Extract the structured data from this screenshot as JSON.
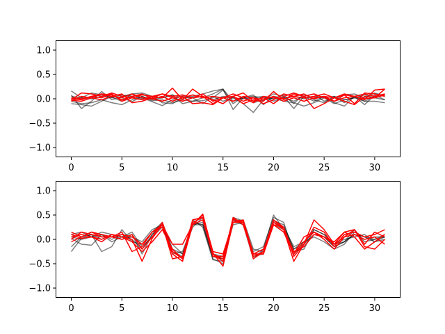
{
  "chart_data": [
    {
      "type": "line",
      "xlim": [
        -1.55,
        32.55
      ],
      "ylim": [
        -1.2,
        1.2
      ],
      "xticks": [
        0,
        5,
        10,
        15,
        20,
        25,
        30
      ],
      "yticks": [
        -1.0,
        -0.5,
        0.0,
        0.5,
        1.0
      ],
      "xtick_labels": [
        "0",
        "5",
        "10",
        "15",
        "20",
        "25",
        "30"
      ],
      "ytick_labels": [
        "−1.0",
        "−0.5",
        "0.0",
        "0.5",
        "1.0"
      ],
      "grid": false,
      "x": [
        0,
        1,
        2,
        3,
        4,
        5,
        6,
        7,
        8,
        9,
        10,
        11,
        12,
        13,
        14,
        15,
        16,
        17,
        18,
        19,
        20,
        21,
        22,
        23,
        24,
        25,
        26,
        27,
        28,
        29,
        30,
        31
      ],
      "series": [
        {
          "color": "#000000",
          "opacity": 0.5,
          "values": [
            0.16,
            0.02,
            0.12,
            0.08,
            0.03,
            -0.05,
            0.1,
            0.12,
            0.05,
            -0.08,
            -0.1,
            0.02,
            0.05,
            0.1,
            0.16,
            0.2,
            -0.22,
            0.02,
            0.08,
            -0.12,
            0.05,
            0.02,
            -0.05,
            0.06,
            0.1,
            -0.05,
            0.02,
            0.08,
            0.1,
            0.02,
            0.12,
            0.06
          ]
        },
        {
          "color": "#000000",
          "opacity": 0.5,
          "values": [
            0.08,
            -0.2,
            -0.05,
            0.15,
            -0.02,
            0.05,
            0.1,
            0.02,
            -0.06,
            -0.14,
            -0.02,
            0.06,
            0.02,
            -0.1,
            0.05,
            -0.05,
            0.02,
            -0.1,
            -0.28,
            -0.02,
            0.1,
            0.05,
            -0.2,
            0.05,
            -0.05,
            0.05,
            -0.08,
            -0.15,
            0.05,
            -0.12,
            0.08,
            -0.02
          ]
        },
        {
          "color": "#000000",
          "opacity": 0.5,
          "values": [
            -0.05,
            -0.1,
            -0.08,
            -0.02,
            -0.08,
            -0.12,
            -0.02,
            0.05,
            -0.04,
            -0.02,
            -0.08,
            -0.02,
            -0.05,
            -0.04,
            0.02,
            0.18,
            -0.1,
            0.05,
            -0.08,
            -0.02,
            0.02,
            -0.05,
            -0.08,
            -0.15,
            -0.08,
            0.02,
            -0.1,
            -0.02,
            0.02,
            -0.05,
            -0.05,
            -0.08
          ]
        },
        {
          "color": "#000000",
          "opacity": 0.5,
          "values": [
            -0.1,
            -0.12,
            -0.15,
            -0.05,
            0.05,
            0.02,
            -0.06,
            0.05,
            -0.02,
            0.02,
            0.08,
            -0.1,
            -0.05,
            0.02,
            0.1,
            0.2,
            -0.05,
            0.02,
            0.05,
            0.02,
            0.0,
            0.08,
            -0.1,
            0.1,
            -0.02,
            -0.08,
            0.05,
            -0.08,
            0.05,
            -0.05,
            0.05,
            0.1
          ]
        },
        {
          "color": "#000000",
          "opacity": 0.5,
          "values": [
            0.05,
            0.02,
            0.0,
            0.05,
            0.02,
            0.08,
            0.05,
            0.0,
            0.05,
            0.02,
            0.08,
            0.02,
            0.02,
            0.05,
            -0.02,
            0.05,
            0.02,
            0.0,
            0.02,
            0.05,
            -0.05,
            0.02,
            0.05,
            0.0,
            0.05,
            0.02,
            0.05,
            -0.02,
            0.02,
            0.08,
            0.02,
            -0.02
          ]
        },
        {
          "color": "#ff0000",
          "opacity": 1,
          "values": [
            -0.02,
            0.12,
            0.1,
            0.05,
            0.12,
            0.05,
            0.02,
            0.08,
            0.05,
            0.02,
            0.22,
            -0.02,
            0.2,
            0.05,
            -0.02,
            -0.1,
            0.05,
            0.12,
            -0.05,
            0.02,
            -0.1,
            0.05,
            0.12,
            0.05,
            0.1,
            0.02,
            -0.05,
            0.08,
            -0.1,
            0.12,
            0.1,
            0.05
          ]
        },
        {
          "color": "#ff0000",
          "opacity": 1,
          "values": [
            0.0,
            -0.02,
            0.05,
            0.1,
            0.05,
            0.1,
            -0.08,
            -0.05,
            0.02,
            0.1,
            0.02,
            0.05,
            -0.1,
            -0.08,
            -0.12,
            0.02,
            0.05,
            -0.1,
            -0.02,
            -0.05,
            0.15,
            -0.02,
            0.1,
            0.05,
            -0.2,
            -0.1,
            0.02,
            -0.05,
            -0.12,
            0.05,
            0.02,
            0.2
          ]
        },
        {
          "color": "#ff0000",
          "opacity": 1,
          "values": [
            -0.05,
            0.05,
            0.02,
            0.1,
            0.08,
            -0.02,
            0.05,
            0.1,
            0.0,
            0.05,
            -0.05,
            0.02,
            0.08,
            0.02,
            0.05,
            0.02,
            -0.05,
            0.05,
            0.02,
            -0.1,
            -0.02,
            0.1,
            0.05,
            0.02,
            0.05,
            0.1,
            0.02,
            0.1,
            0.05,
            -0.02,
            0.18,
            0.2
          ]
        },
        {
          "color": "#ff0000",
          "opacity": 1,
          "values": [
            0.02,
            0.0,
            0.05,
            0.02,
            0.1,
            -0.05,
            0.02,
            -0.02,
            0.05,
            0.1,
            0.05,
            0.08,
            0.02,
            0.1,
            -0.05,
            0.02,
            0.1,
            0.02,
            -0.08,
            0.05,
            0.02,
            0.0,
            0.05,
            0.1,
            0.0,
            0.05,
            0.02,
            0.08,
            0.05,
            0.1,
            0.05,
            0.1
          ]
        },
        {
          "color": "#ff0000",
          "opacity": 1,
          "values": [
            -0.03,
            -0.05,
            0.02,
            -0.02,
            0.05,
            0.02,
            0.1,
            0.02,
            0.0,
            -0.05,
            0.02,
            -0.05,
            0.02,
            0.05,
            -0.1,
            0.02,
            0.05,
            -0.05,
            0.02,
            -0.02,
            0.05,
            -0.05,
            0.02,
            -0.05,
            0.02,
            0.05,
            -0.05,
            0.02,
            0.05,
            0.0,
            0.02,
            0.08
          ]
        }
      ]
    },
    {
      "type": "line",
      "xlim": [
        -1.55,
        32.55
      ],
      "ylim": [
        -1.2,
        1.2
      ],
      "xticks": [
        0,
        5,
        10,
        15,
        20,
        25,
        30
      ],
      "yticks": [
        -1.0,
        -0.5,
        0.0,
        0.5,
        1.0
      ],
      "xtick_labels": [
        "0",
        "5",
        "10",
        "15",
        "20",
        "25",
        "30"
      ],
      "ytick_labels": [
        "−1.0",
        "−0.5",
        "0.0",
        "0.5",
        "1.0"
      ],
      "grid": false,
      "x": [
        0,
        1,
        2,
        3,
        4,
        5,
        6,
        7,
        8,
        9,
        10,
        11,
        12,
        13,
        14,
        15,
        16,
        17,
        18,
        19,
        20,
        21,
        22,
        23,
        24,
        25,
        26,
        27,
        28,
        29,
        30,
        31
      ],
      "series": [
        {
          "color": "#000000",
          "opacity": 0.5,
          "values": [
            -0.25,
            0.02,
            0.1,
            -0.25,
            -0.15,
            0.2,
            -0.05,
            -0.1,
            0.15,
            0.35,
            -0.2,
            -0.4,
            0.35,
            0.3,
            -0.4,
            -0.5,
            0.4,
            0.3,
            -0.4,
            -0.2,
            0.5,
            0.2,
            -0.25,
            -0.2,
            0.2,
            0.1,
            -0.1,
            -0.05,
            0.2,
            -0.05,
            0.0,
            0.1
          ]
        },
        {
          "color": "#000000",
          "opacity": 0.5,
          "values": [
            0.02,
            -0.1,
            -0.12,
            0.1,
            -0.05,
            0.05,
            0.1,
            -0.3,
            0.1,
            0.32,
            -0.25,
            -0.35,
            0.4,
            0.25,
            -0.42,
            -0.45,
            0.45,
            0.38,
            -0.35,
            -0.3,
            0.38,
            0.3,
            -0.2,
            -0.05,
            0.15,
            0.05,
            -0.15,
            -0.05,
            0.1,
            0.0,
            0.05,
            0.05
          ]
        },
        {
          "color": "#000000",
          "opacity": 0.5,
          "values": [
            0.1,
            0.15,
            0.05,
            0.15,
            0.1,
            0.0,
            0.05,
            -0.05,
            0.2,
            0.3,
            -0.3,
            -0.25,
            0.3,
            0.35,
            -0.35,
            -0.4,
            0.35,
            0.4,
            -0.2,
            -0.25,
            0.35,
            0.25,
            -0.15,
            -0.05,
            0.05,
            -0.05,
            -0.2,
            -0.1,
            0.15,
            0.05,
            -0.05,
            0.0
          ]
        },
        {
          "color": "#000000",
          "opacity": 0.5,
          "values": [
            -0.15,
            0.05,
            0.1,
            0.0,
            0.1,
            0.05,
            0.15,
            -0.15,
            0.05,
            0.25,
            -0.1,
            -0.3,
            0.25,
            0.45,
            -0.3,
            -0.35,
            0.4,
            0.3,
            -0.25,
            -0.15,
            0.45,
            0.35,
            -0.3,
            -0.1,
            0.2,
            0.1,
            -0.1,
            0.0,
            0.05,
            0.1,
            -0.05,
            0.05
          ]
        },
        {
          "color": "#000000",
          "opacity": 0.5,
          "values": [
            0.05,
            0.0,
            0.05,
            0.1,
            0.0,
            0.1,
            0.0,
            -0.2,
            0.1,
            0.3,
            -0.2,
            -0.3,
            0.3,
            0.3,
            -0.35,
            -0.4,
            0.3,
            0.35,
            -0.3,
            -0.2,
            0.3,
            0.2,
            -0.2,
            -0.1,
            0.1,
            0.05,
            -0.15,
            -0.05,
            0.1,
            0.05,
            0.0,
            0.05
          ]
        },
        {
          "color": "#ff0000",
          "opacity": 1,
          "values": [
            0.1,
            0.02,
            0.05,
            -0.05,
            0.1,
            0.05,
            0.0,
            -0.45,
            0.02,
            0.3,
            -0.1,
            -0.1,
            0.3,
            0.52,
            -0.28,
            -0.55,
            0.35,
            0.35,
            -0.4,
            -0.25,
            0.4,
            0.2,
            -0.45,
            -0.1,
            0.4,
            0.2,
            -0.1,
            0.15,
            0.2,
            -0.1,
            0.15,
            0.05
          ]
        },
        {
          "color": "#ff0000",
          "opacity": 1,
          "values": [
            0.15,
            0.05,
            0.15,
            0.05,
            0.05,
            0.15,
            -0.25,
            -0.15,
            0.15,
            0.3,
            -0.4,
            -0.35,
            0.4,
            0.45,
            -0.3,
            -0.4,
            0.42,
            0.35,
            -0.3,
            -0.3,
            0.35,
            0.2,
            -0.25,
            -0.15,
            0.1,
            0.05,
            -0.05,
            0.15,
            0.05,
            -0.2,
            -0.05,
            0.1
          ]
        },
        {
          "color": "#ff0000",
          "opacity": 1,
          "values": [
            -0.05,
            0.05,
            0.15,
            0.1,
            0.05,
            0.1,
            0.05,
            -0.1,
            0.15,
            0.25,
            -0.3,
            -0.45,
            0.3,
            0.5,
            -0.25,
            -0.3,
            0.35,
            0.4,
            -0.3,
            -0.2,
            0.3,
            0.15,
            -0.3,
            0.05,
            0.15,
            0.0,
            -0.2,
            0.05,
            0.2,
            -0.15,
            -0.2,
            0.0
          ]
        },
        {
          "color": "#ff0000",
          "opacity": 1,
          "values": [
            0.05,
            0.1,
            0.05,
            0.0,
            0.1,
            0.05,
            -0.05,
            -0.25,
            -0.05,
            0.2,
            -0.2,
            -0.4,
            0.35,
            0.45,
            -0.35,
            -0.35,
            0.4,
            0.38,
            -0.3,
            -0.3,
            0.3,
            0.25,
            -0.3,
            -0.05,
            0.15,
            0.05,
            -0.1,
            0.05,
            0.1,
            0.0,
            0.05,
            -0.1
          ]
        },
        {
          "color": "#ff0000",
          "opacity": 1,
          "values": [
            0.0,
            0.15,
            0.1,
            0.05,
            0.05,
            0.0,
            0.1,
            -0.2,
            0.05,
            0.35,
            -0.25,
            -0.4,
            0.3,
            0.4,
            -0.3,
            -0.45,
            0.45,
            0.3,
            -0.35,
            -0.25,
            0.4,
            0.25,
            -0.35,
            -0.1,
            0.25,
            0.15,
            -0.15,
            0.1,
            0.15,
            0.05,
            0.1,
            0.2
          ]
        }
      ]
    }
  ]
}
